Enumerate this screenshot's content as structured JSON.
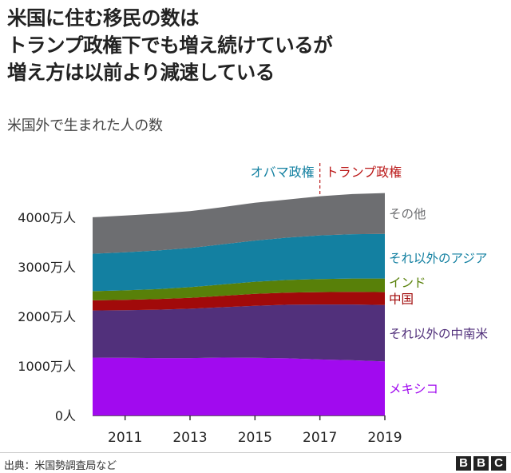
{
  "title_lines": [
    "米国に住む移民の数は",
    "トランプ政権下でも増え続けているが",
    "増え方は以前より減速している"
  ],
  "source": "出典：米国勢調査局など",
  "logo_letters": [
    "B",
    "B",
    "C"
  ],
  "colors": {
    "mexico": "#a10aef",
    "latin_america": "#51307b",
    "china": "#a10a0a",
    "india": "#588009",
    "other_asia": "#1380a1",
    "other": "#6d6e71",
    "obama_label": "#1380a1",
    "trump_label": "#bb1919"
  },
  "chart_data": {
    "type": "area",
    "stacked": true,
    "title": "米国外で生まれた人の数",
    "ylim": [
      0,
      4500
    ],
    "yticks": [
      {
        "value": 0,
        "label": "0人"
      },
      {
        "value": 1000,
        "label": "1000万人"
      },
      {
        "value": 2000,
        "label": "2000万人"
      },
      {
        "value": 3000,
        "label": "3000万人"
      },
      {
        "value": 4000,
        "label": "4000万人"
      }
    ],
    "x": [
      2010,
      2011,
      2012,
      2013,
      2014,
      2015,
      2016,
      2017,
      2018,
      2019
    ],
    "xticks": [
      2011,
      2013,
      2015,
      2017,
      2019
    ],
    "series": [
      {
        "name": "メキシコ",
        "color_key": "mexico",
        "values": [
          1170,
          1165,
          1160,
          1160,
          1170,
          1165,
          1155,
          1130,
          1115,
          1090
        ]
      },
      {
        "name": "それ以外の中南米",
        "color_key": "latin_america",
        "values": [
          950,
          960,
          975,
          995,
          1015,
          1050,
          1080,
          1110,
          1125,
          1140
        ]
      },
      {
        "name": "中国",
        "color_key": "china",
        "values": [
          205,
          210,
          215,
          220,
          230,
          240,
          245,
          250,
          255,
          260
        ]
      },
      {
        "name": "インド",
        "color_key": "india",
        "values": [
          185,
          190,
          200,
          215,
          230,
          245,
          255,
          265,
          270,
          275
        ]
      },
      {
        "name": "それ以外のアジア",
        "color_key": "other_asia",
        "values": [
          755,
          770,
          780,
          790,
          810,
          830,
          855,
          880,
          895,
          900
        ]
      },
      {
        "name": "その他",
        "color_key": "other",
        "values": [
          735,
          740,
          745,
          745,
          750,
          765,
          770,
          790,
          810,
          825
        ]
      }
    ],
    "annotations": {
      "obama": "オバマ政権",
      "trump": "トランプ政権",
      "divider_x": 2017
    }
  }
}
